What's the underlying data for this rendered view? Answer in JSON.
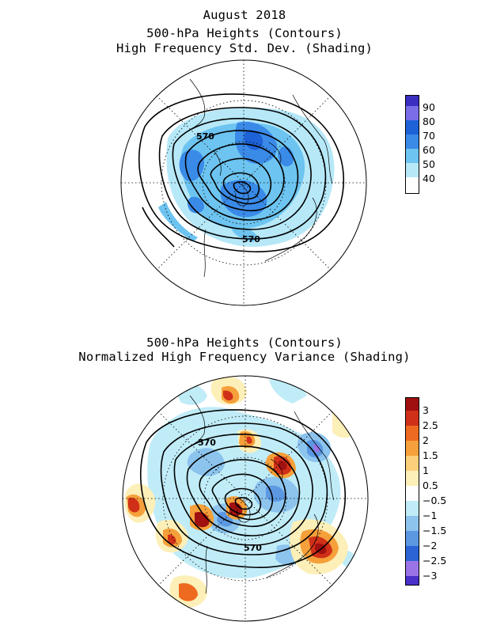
{
  "panel_top": {
    "title_lines": [
      "August 2018",
      "500-hPa Heights (Contours)",
      "High Frequency Std. Dev. (Shading)"
    ],
    "contour_labels": [
      "570",
      "570"
    ],
    "colorbar": {
      "labels": [
        "90",
        "80",
        "70",
        "60",
        "50",
        "40"
      ],
      "colors": [
        "#3a2fc0",
        "#7a6de8",
        "#1e62d8",
        "#3a8ae8",
        "#6dc4f0",
        "#b6e8f8",
        "#ffffff"
      ]
    }
  },
  "panel_bottom": {
    "title_lines": [
      "500-hPa Heights (Contours)",
      "Normalized High Frequency Variance (Shading)"
    ],
    "contour_labels": [
      "570",
      "570"
    ],
    "colorbar": {
      "labels": [
        "3",
        "2.5",
        "2",
        "1.5",
        "1",
        "0.5",
        "−0.5",
        "−1",
        "−1.5",
        "−2",
        "−2.5",
        "−3"
      ],
      "colors": [
        "#a01010",
        "#d03018",
        "#ee6a20",
        "#f5a03a",
        "#fcd07a",
        "#fdefb8",
        "#ffffff",
        "#c0ecf8",
        "#8cc4ee",
        "#5c98e2",
        "#2c64d6",
        "#9a74e6",
        "#4a30c8"
      ]
    }
  }
}
